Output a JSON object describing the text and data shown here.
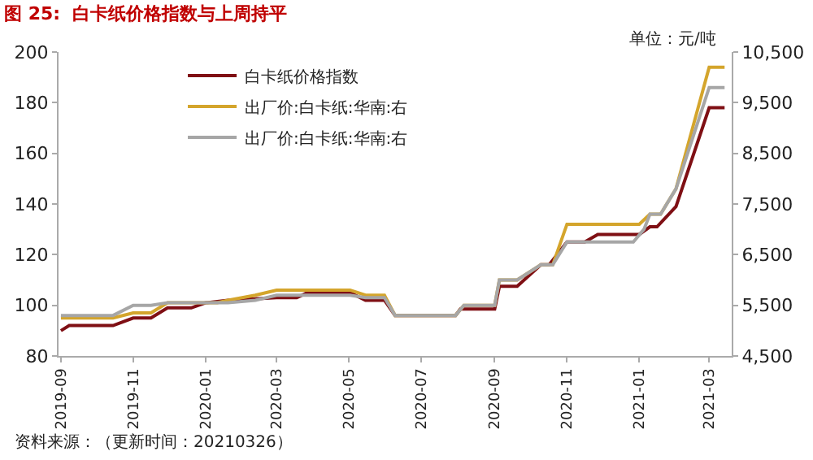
{
  "chart_data": {
    "type": "line",
    "title": "图 25:  白卡纸价格指数与上周持平",
    "annotations": [
      "单位：元/吨",
      "资料来源：（更新时间：20210326）"
    ],
    "xlim": [
      "2019-08-30",
      "2021-03-20"
    ],
    "xticks": [
      "2019-09",
      "2019-11",
      "2020-01",
      "2020-03",
      "2020-05",
      "2020-07",
      "2020-09",
      "2020-11",
      "2021-01",
      "2021-03"
    ],
    "ylim": [
      80,
      200
    ],
    "yticks": [
      80,
      100,
      120,
      140,
      160,
      180,
      200
    ],
    "y2lim": [
      4500,
      10500
    ],
    "y2ticks": [
      {
        "value": 4500,
        "label": "4,500"
      },
      {
        "value": 5500,
        "label": "5,500"
      },
      {
        "value": 6500,
        "label": "6,500"
      },
      {
        "value": 7500,
        "label": "7,500"
      },
      {
        "value": 8500,
        "label": "8,500"
      },
      {
        "value": 9500,
        "label": "9,500"
      },
      {
        "value": 10500,
        "label": "10,500"
      }
    ],
    "grid": false,
    "legend": "top",
    "marker": "none",
    "line_style": "solid",
    "series": [
      {
        "name": "白卡纸价格指数",
        "color": "#7f0f14",
        "x": [
          "2019-09-01",
          "2019-09-08",
          "2019-10-15",
          "2019-11-01",
          "2019-11-16",
          "2019-11-30",
          "2019-12-20",
          "2020-01-01",
          "2020-01-20",
          "2020-03-01",
          "2020-03-18",
          "2020-03-27",
          "2020-05-02",
          "2020-05-15",
          "2020-05-31",
          "2020-06-09",
          "2020-07-30",
          "2020-08-03",
          "2020-09-01",
          "2020-09-05",
          "2020-09-20",
          "2020-10-10",
          "2020-10-17",
          "2020-11-01",
          "2020-11-16",
          "2020-11-27",
          "2021-01-01",
          "2021-01-10",
          "2021-01-16",
          "2021-02-01",
          "2021-03-01",
          "2021-03-14"
        ],
        "values": [
          90,
          92,
          92,
          95,
          95,
          99,
          99,
          101,
          102,
          103,
          103,
          105,
          105,
          102,
          102,
          96,
          96,
          98.5,
          98.5,
          107.5,
          107.5,
          116,
          116,
          125,
          125,
          128,
          128,
          131,
          131,
          139,
          178,
          178
        ]
      },
      {
        "name": "出厂价:白卡纸:华南:右",
        "color": "#d4a52c",
        "axis": "y2",
        "x": [
          "2019-09-01",
          "2019-10-15",
          "2019-11-01",
          "2019-11-16",
          "2019-11-30",
          "2020-01-11",
          "2020-01-20",
          "2020-02-12",
          "2020-03-01",
          "2020-05-02",
          "2020-05-15",
          "2020-05-31",
          "2020-06-09",
          "2020-07-30",
          "2020-08-06",
          "2020-09-01",
          "2020-09-05",
          "2020-09-20",
          "2020-10-10",
          "2020-10-20",
          "2020-11-01",
          "2021-01-01",
          "2021-01-10",
          "2021-01-19",
          "2021-02-01",
          "2021-03-01",
          "2021-03-14"
        ],
        "values": [
          5250,
          5250,
          5350,
          5350,
          5550,
          5550,
          5600,
          5700,
          5800,
          5800,
          5700,
          5700,
          5300,
          5300,
          5500,
          5500,
          6000,
          6000,
          6300,
          6300,
          7100,
          7100,
          7300,
          7300,
          7800,
          10200,
          10200
        ]
      },
      {
        "name": "出厂价:白卡纸:华南:右",
        "color": "#a6a6a6",
        "axis": "y2",
        "x": [
          "2019-09-01",
          "2019-10-15",
          "2019-11-01",
          "2019-11-16",
          "2019-11-30",
          "2020-01-20",
          "2020-02-12",
          "2020-03-01",
          "2020-05-02",
          "2020-05-15",
          "2020-05-31",
          "2020-06-09",
          "2020-07-30",
          "2020-08-06",
          "2020-09-01",
          "2020-09-05",
          "2020-09-20",
          "2020-10-10",
          "2020-10-20",
          "2020-11-01",
          "2020-12-27",
          "2021-01-05",
          "2021-01-10",
          "2021-01-19",
          "2021-02-01",
          "2021-03-01",
          "2021-03-14"
        ],
        "values": [
          5300,
          5300,
          5500,
          5500,
          5550,
          5550,
          5600,
          5700,
          5700,
          5650,
          5650,
          5300,
          5300,
          5500,
          5500,
          6000,
          6000,
          6300,
          6300,
          6750,
          6750,
          7000,
          7300,
          7300,
          7800,
          9800,
          9800
        ]
      }
    ]
  }
}
